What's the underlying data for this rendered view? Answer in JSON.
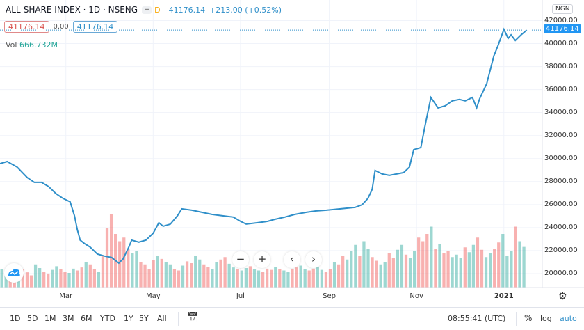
{
  "header": {
    "title": "ALL-SHARE INDEX · 1D · NSENG",
    "mode_badge": "D",
    "last": "41176.14",
    "change": "+213.00 (+0.52%)",
    "sell": "41176.14",
    "spread": "0.00",
    "buy": "41176.14",
    "vol_label": "Vol",
    "vol_value": "666.732M"
  },
  "currency": "NGN",
  "colors": {
    "line": "#2f8fc9",
    "vol_up": "#26a69a",
    "vol_down": "#ef5350",
    "current_price_bg": "#2196f3"
  },
  "nav_buttons": {
    "zoom_out": "−",
    "zoom_in": "+",
    "scroll_left": "‹",
    "scroll_right": "›"
  },
  "toolbar": {
    "ranges": [
      "1D",
      "5D",
      "1M",
      "3M",
      "6M",
      "YTD",
      "1Y",
      "5Y",
      "All"
    ],
    "time": "08:55:41 (UTC)",
    "percent": "%",
    "log": "log",
    "auto": "auto"
  },
  "chart_data": {
    "type": "line",
    "title": "ALL-SHARE INDEX · 1D · NSENG",
    "y_ticks": [
      "42000.00",
      "40000.00",
      "38000.00",
      "36000.00",
      "34000.00",
      "32000.00",
      "30000.00",
      "28000.00",
      "26000.00",
      "24000.00",
      "22000.00",
      "20000.00"
    ],
    "ylim": [
      19300,
      42300
    ],
    "x_ticks": [
      {
        "label": "Mar",
        "date": "2020-03-01"
      },
      {
        "label": "May",
        "date": "2020-05-01"
      },
      {
        "label": "Jul",
        "date": "2020-07-01"
      },
      {
        "label": "Sep",
        "date": "2020-09-01"
      },
      {
        "label": "Nov",
        "date": "2020-11-01"
      },
      {
        "label": "2021",
        "date": "2021-01-01"
      }
    ],
    "current_price": 41176.14,
    "current_price_label": "41176.14",
    "grid": true,
    "series": [
      {
        "values": [
          [
            "2020-01-15",
            29560
          ],
          [
            "2020-01-20",
            29740
          ],
          [
            "2020-01-27",
            29260
          ],
          [
            "2020-02-03",
            28350
          ],
          [
            "2020-02-08",
            27930
          ],
          [
            "2020-02-13",
            27930
          ],
          [
            "2020-02-18",
            27560
          ],
          [
            "2020-02-23",
            26960
          ],
          [
            "2020-02-28",
            26540
          ],
          [
            "2020-03-04",
            26240
          ],
          [
            "2020-03-07",
            25030
          ],
          [
            "2020-03-09",
            23820
          ],
          [
            "2020-03-11",
            22910
          ],
          [
            "2020-03-14",
            22610
          ],
          [
            "2020-03-18",
            22300
          ],
          [
            "2020-03-23",
            21700
          ],
          [
            "2020-03-28",
            21520
          ],
          [
            "2020-04-02",
            21400
          ],
          [
            "2020-04-07",
            20910
          ],
          [
            "2020-04-10",
            21280
          ],
          [
            "2020-04-14",
            22310
          ],
          [
            "2020-04-16",
            22910
          ],
          [
            "2020-04-21",
            22730
          ],
          [
            "2020-04-26",
            22910
          ],
          [
            "2020-05-01",
            23510
          ],
          [
            "2020-05-05",
            24420
          ],
          [
            "2020-05-08",
            24120
          ],
          [
            "2020-05-13",
            24300
          ],
          [
            "2020-05-18",
            25030
          ],
          [
            "2020-05-21",
            25630
          ],
          [
            "2020-05-28",
            25510
          ],
          [
            "2020-06-04",
            25330
          ],
          [
            "2020-06-11",
            25150
          ],
          [
            "2020-06-18",
            25030
          ],
          [
            "2020-06-26",
            24910
          ],
          [
            "2020-07-01",
            24540
          ],
          [
            "2020-07-05",
            24300
          ],
          [
            "2020-07-13",
            24420
          ],
          [
            "2020-07-20",
            24540
          ],
          [
            "2020-07-25",
            24720
          ],
          [
            "2020-08-01",
            24910
          ],
          [
            "2020-08-08",
            25150
          ],
          [
            "2020-08-16",
            25330
          ],
          [
            "2020-08-23",
            25450
          ],
          [
            "2020-08-30",
            25510
          ],
          [
            "2020-09-09",
            25630
          ],
          [
            "2020-09-19",
            25750
          ],
          [
            "2020-09-24",
            25990
          ],
          [
            "2020-09-28",
            26540
          ],
          [
            "2020-10-01",
            27320
          ],
          [
            "2020-10-03",
            28960
          ],
          [
            "2020-10-08",
            28660
          ],
          [
            "2020-10-13",
            28540
          ],
          [
            "2020-10-18",
            28660
          ],
          [
            "2020-10-23",
            28780
          ],
          [
            "2020-10-27",
            29260
          ],
          [
            "2020-10-30",
            30780
          ],
          [
            "2020-11-04",
            30960
          ],
          [
            "2020-11-07",
            32890
          ],
          [
            "2020-11-11",
            35310
          ],
          [
            "2020-11-16",
            34410
          ],
          [
            "2020-11-21",
            34590
          ],
          [
            "2020-11-26",
            35020
          ],
          [
            "2020-12-01",
            35140
          ],
          [
            "2020-12-05",
            35020
          ],
          [
            "2020-12-10",
            35310
          ],
          [
            "2020-12-13",
            34410
          ],
          [
            "2020-12-15",
            35190
          ],
          [
            "2020-12-20",
            36520
          ],
          [
            "2020-12-25",
            38940
          ],
          [
            "2020-12-28",
            39850
          ],
          [
            "2021-01-01",
            41240
          ],
          [
            "2021-01-04",
            40450
          ],
          [
            "2021-01-06",
            40760
          ],
          [
            "2021-01-09",
            40270
          ],
          [
            "2021-01-13",
            40760
          ],
          [
            "2021-01-17",
            41176
          ]
        ]
      }
    ],
    "volume": {
      "unit": "M",
      "last": 666.732,
      "values": [
        300,
        260,
        280,
        220,
        340,
        300,
        250,
        200,
        380,
        320,
        260,
        230,
        290,
        350,
        300,
        260,
        240,
        310,
        280,
        330,
        420,
        380,
        300,
        260,
        520,
        980,
        1200,
        880,
        760,
        820,
        640,
        560,
        600,
        420,
        380,
        300,
        450,
        520,
        470,
        420,
        380,
        300,
        280,
        360,
        430,
        400,
        520,
        460,
        380,
        340,
        300,
        420,
        460,
        500,
        390,
        330,
        300,
        280,
        320,
        350,
        300,
        280,
        260,
        310,
        290,
        340,
        300,
        280,
        260,
        300,
        330,
        360,
        300,
        280,
        310,
        340,
        290,
        260,
        300,
        420,
        380,
        520,
        460,
        600,
        700,
        520,
        760,
        640,
        500,
        440,
        380,
        420,
        560,
        480,
        620,
        700,
        540,
        480,
        600,
        820,
        760,
        880,
        1000,
        640,
        720,
        560,
        600,
        500,
        540,
        480,
        660,
        580,
        700,
        820,
        620,
        500,
        560,
        640,
        740,
        880,
        520,
        600,
        1000,
        760,
        667
      ],
      "direction": "uudduddduudduudduuddudduddddddduudddduduuddudduudduudduuduuduuddduduudduudduuddudduuuduudduudduuduudddududduuuduudduudduuudu"
    }
  }
}
